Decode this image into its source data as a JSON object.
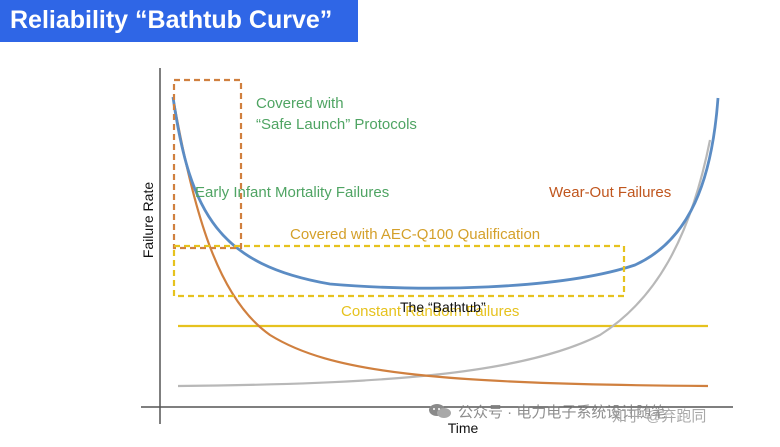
{
  "title": "Reliability “Bathtub Curve”",
  "axes": {
    "ylabel": "Failure Rate",
    "xlabel": "Time"
  },
  "annotations": {
    "safe_launch_line1": "Covered with",
    "safe_launch_line2": "“Safe Launch” Protocols",
    "early_failures": "Early Infant Mortality Failures",
    "wearout_failures": "Wear-Out Failures",
    "aec_q100": "Covered with AEC-Q100 Qualification",
    "bathtub_label": "The “Bathtub”",
    "constant_failures": "Constant Random Failures"
  },
  "watermark": {
    "wechat": "公众号 · 电力电子系统设计随笔",
    "zhihu": "知乎 @弃跑同"
  },
  "colors": {
    "title_bg": "#2f66e6",
    "bathtub_curve": "#5b8cc4",
    "infant_curve": "#d0803f",
    "wearout_curve": "#b8b8b8",
    "constant_line": "#e6c21e",
    "safe_launch_box": "#d0803f",
    "aec_box": "#e6c21e",
    "green_text": "#4fa463",
    "orange_text": "#c0561e",
    "aec_text": "#d4a02a"
  }
}
